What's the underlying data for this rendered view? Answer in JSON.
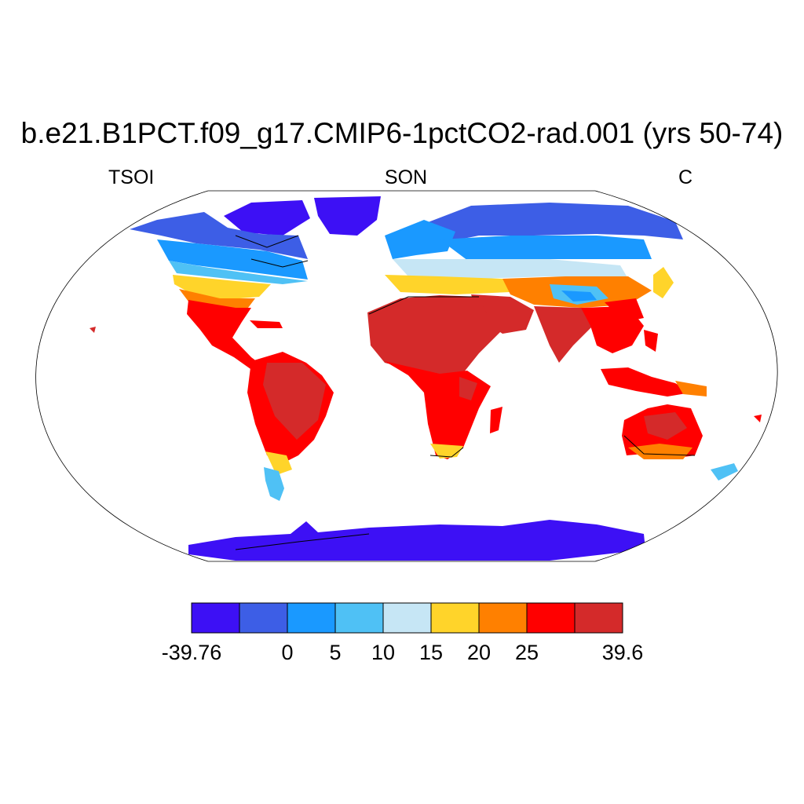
{
  "title": "b.e21.B1PCT.f09_g17.CMIP6-1pctCO2-rad.001 (yrs 50-74)",
  "variable": "TSOI",
  "season": "SON",
  "units": "C",
  "colorbar": {
    "colors": [
      "#3d10f5",
      "#3d5ee6",
      "#1a99ff",
      "#4fc1f5",
      "#c6e6f5",
      "#ffd42a",
      "#ff8000",
      "#ff0000",
      "#d42a2a"
    ],
    "labels": [
      "-39.76",
      "0",
      "5",
      "10",
      "15",
      "20",
      "25",
      "39.6"
    ],
    "label_boundaries": [
      0,
      2,
      3,
      4,
      5,
      6,
      7,
      9
    ]
  },
  "map": {
    "projection": "Robinson",
    "ocean_color": "#ffffff",
    "coastline_color": "#000000"
  }
}
